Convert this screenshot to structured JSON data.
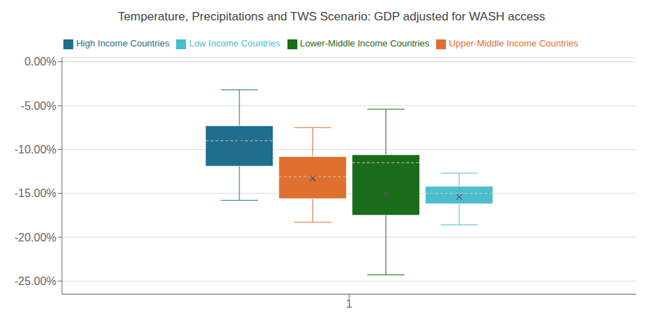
{
  "chart_data": {
    "type": "box",
    "title": "Temperature, Precipitations and TWS Scenario: GDP adjusted for WASH access",
    "categories": [
      "1"
    ],
    "series": [
      {
        "name": "High Income Countries",
        "color": "#1f6e8c",
        "whisker_low": -0.158,
        "q1": -0.119,
        "median": -0.09,
        "q3": -0.073,
        "whisker_high": -0.032,
        "mean": -0.093
      },
      {
        "name": "Upper-Middle Income Countries",
        "color": "#e07030",
        "whisker_low": -0.183,
        "q1": -0.156,
        "median": -0.131,
        "q3": -0.108,
        "whisker_high": -0.075,
        "mean": -0.133
      },
      {
        "name": "Lower-Middle Income Countries",
        "color": "#1a6b1a",
        "whisker_low": -0.243,
        "q1": -0.175,
        "median": -0.115,
        "q3": -0.106,
        "whisker_high": -0.054,
        "mean": -0.15
      },
      {
        "name": "Low Income Countries",
        "color": "#4bbece",
        "whisker_low": -0.186,
        "q1": -0.162,
        "median": -0.15,
        "q3": -0.142,
        "whisker_high": -0.127,
        "mean": -0.154
      }
    ],
    "ylim": [
      -0.265,
      0.005
    ],
    "yticks": [
      {
        "value": 0.0,
        "label": "0.00%"
      },
      {
        "value": -0.05,
        "label": "-5.00%"
      },
      {
        "value": -0.1,
        "label": "-10.00%"
      },
      {
        "value": -0.15,
        "label": "-15.00%"
      },
      {
        "value": -0.2,
        "label": "-20.00%"
      },
      {
        "value": -0.25,
        "label": "-25.00%"
      }
    ],
    "grid": true,
    "legend": "top"
  }
}
